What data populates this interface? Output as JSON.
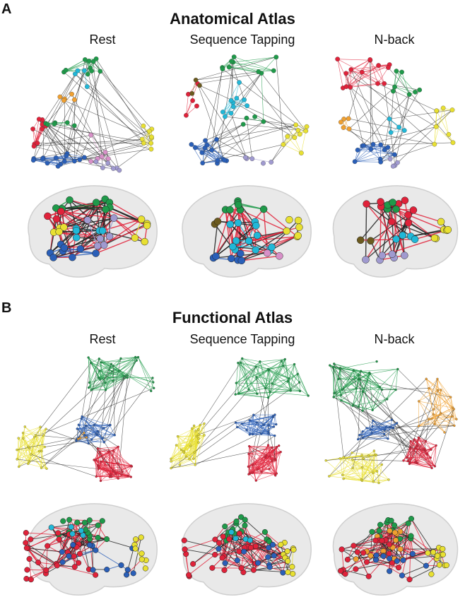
{
  "panels": [
    {
      "letter": "A",
      "title": "Anatomical Atlas",
      "conditions": [
        "Rest",
        "Sequence Tapping",
        "N-back"
      ]
    },
    {
      "letter": "B",
      "title": "Functional Atlas",
      "conditions": [
        "Rest",
        "Sequence Tapping",
        "N-back"
      ]
    }
  ],
  "colors": {
    "green": "#1f9a4a",
    "cyan": "#21b8d8",
    "orange": "#f0a030",
    "red": "#e0223a",
    "blue": "#2a5fb8",
    "yellow": "#e8e032",
    "lavender": "#a09ad0",
    "pink": "#d890c8",
    "olive": "#6b5a1e",
    "edge": "#222222"
  }
}
